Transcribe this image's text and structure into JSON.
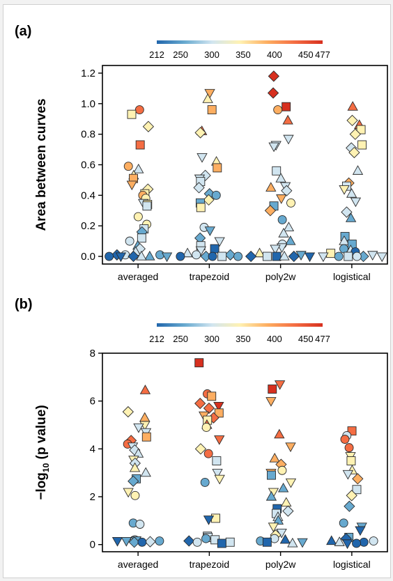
{
  "colorbar": {
    "ticks": [
      "212",
      "250",
      "300",
      "350",
      "400",
      "450",
      "477"
    ],
    "stops": [
      "#2166ac",
      "#67a9cf",
      "#d1e5f0",
      "#fff2b3",
      "#fdae61",
      "#f46d43",
      "#d7301f"
    ]
  },
  "chart_data": [
    {
      "type": "scatter",
      "panel_label": "(a)",
      "ylabel": "Area between curves",
      "ylim": [
        -0.05,
        1.25
      ],
      "yticks": [
        "0.0",
        "0.2",
        "0.4",
        "0.6",
        "0.8",
        "1.0",
        "1.2"
      ],
      "yticks_values": [
        0,
        0.2,
        0.4,
        0.6,
        0.8,
        1.0,
        1.2
      ],
      "categories": [
        "averaged",
        "trapezoid",
        "poly2w",
        "logistical"
      ],
      "grid": false,
      "series": [
        {
          "category": "averaged",
          "values": [
            0.96,
            0.93,
            0.85,
            0.73,
            0.59,
            0.57,
            0.53,
            0.51,
            0.47,
            0.44,
            0.41,
            0.4,
            0.38,
            0.35,
            0.34,
            0.33,
            0.26,
            0.21,
            0.18,
            0.16,
            0.12,
            0.1,
            0.07,
            0.05,
            0.03,
            0.01,
            0.01,
            0.01,
            0.0,
            0.0,
            0.0,
            0.0,
            0.0,
            0.0
          ]
        },
        {
          "category": "trapezoid",
          "values": [
            1.07,
            1.03,
            0.96,
            0.82,
            0.81,
            0.65,
            0.62,
            0.58,
            0.53,
            0.51,
            0.49,
            0.45,
            0.41,
            0.4,
            0.37,
            0.35,
            0.32,
            0.19,
            0.17,
            0.12,
            0.1,
            0.07,
            0.05,
            0.04,
            0.02,
            0.01,
            0.01,
            0.0,
            0.0,
            0.0,
            0.0,
            0.0
          ]
        },
        {
          "category": "poly2w",
          "values": [
            1.18,
            1.07,
            0.98,
            0.96,
            0.89,
            0.77,
            0.73,
            0.72,
            0.56,
            0.51,
            0.46,
            0.45,
            0.43,
            0.38,
            0.35,
            0.33,
            0.3,
            0.24,
            0.19,
            0.15,
            0.1,
            0.08,
            0.06,
            0.05,
            0.02,
            0.01,
            0.0,
            0.0,
            0.0,
            0.0,
            0.0,
            0.0
          ]
        },
        {
          "category": "logistical",
          "values": [
            0.98,
            0.89,
            0.86,
            0.83,
            0.8,
            0.73,
            0.71,
            0.68,
            0.56,
            0.48,
            0.46,
            0.44,
            0.41,
            0.36,
            0.29,
            0.25,
            0.13,
            0.1,
            0.08,
            0.05,
            0.04,
            0.03,
            0.02,
            0.01,
            0.0,
            0.0,
            0.0,
            0.0,
            0.0,
            0.0
          ]
        }
      ]
    },
    {
      "type": "scatter",
      "panel_label": "(b)",
      "ylabel_main": "−log",
      "ylabel_sub": "10",
      "ylabel_tail": " (p value)",
      "ylim": [
        -0.3,
        8.0
      ],
      "yticks": [
        "0",
        "2",
        "4",
        "6",
        "8"
      ],
      "yticks_values": [
        0,
        2,
        4,
        6,
        8
      ],
      "categories": [
        "averaged",
        "trapezoid",
        "poly2w",
        "logistical"
      ],
      "grid": false,
      "series": [
        {
          "category": "averaged",
          "values": [
            6.45,
            5.55,
            5.3,
            5.0,
            4.9,
            4.7,
            4.5,
            4.35,
            4.2,
            4.1,
            3.95,
            3.8,
            3.55,
            3.4,
            3.2,
            3.0,
            2.75,
            2.65,
            2.2,
            2.05,
            0.9,
            0.85,
            0.2,
            0.18,
            0.15,
            0.15,
            0.15,
            0.12,
            0.1,
            0.1
          ]
        },
        {
          "category": "trapezoid",
          "values": [
            7.6,
            6.3,
            6.2,
            5.9,
            5.8,
            5.7,
            5.5,
            5.4,
            5.3,
            5.2,
            5.0,
            4.9,
            4.4,
            4.0,
            3.8,
            3.5,
            3.0,
            2.75,
            2.6,
            1.1,
            1.05,
            0.35,
            0.3,
            0.25,
            0.2,
            0.15,
            0.1,
            0.1,
            0.05
          ]
        },
        {
          "category": "poly2w",
          "values": [
            6.7,
            6.5,
            6.0,
            4.6,
            4.1,
            3.6,
            3.35,
            3.1,
            3.0,
            2.9,
            2.6,
            2.35,
            2.2,
            2.0,
            1.75,
            1.5,
            1.4,
            1.3,
            1.15,
            1.0,
            0.75,
            0.5,
            0.4,
            0.25,
            0.2,
            0.15,
            0.1,
            0.1,
            0.05
          ]
        },
        {
          "category": "logistical",
          "values": [
            4.75,
            4.55,
            4.4,
            4.05,
            3.7,
            3.5,
            3.1,
            2.95,
            2.75,
            2.3,
            2.05,
            1.6,
            0.9,
            0.75,
            0.6,
            0.3,
            0.25,
            0.15,
            0.15,
            0.1,
            0.1,
            0.05,
            0.05
          ]
        }
      ]
    }
  ]
}
